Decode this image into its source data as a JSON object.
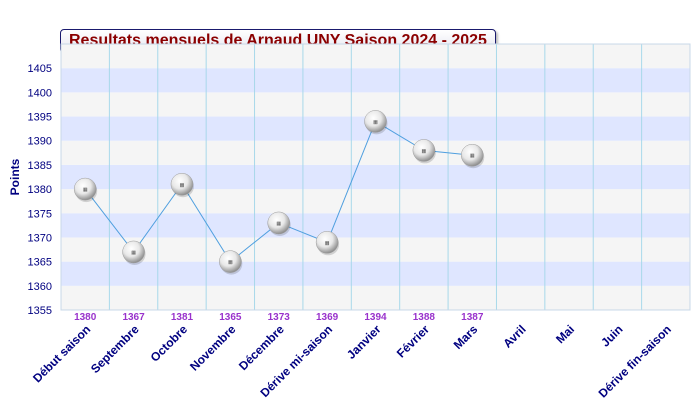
{
  "chart_data": {
    "type": "line",
    "title": "Resultats mensuels de Arnaud UNY Saison 2024 - 2025",
    "ylabel": "Points",
    "xlabel": "",
    "ylim": [
      1355,
      1410
    ],
    "yticks": [
      1355,
      1360,
      1365,
      1370,
      1375,
      1380,
      1385,
      1390,
      1395,
      1400,
      1405
    ],
    "categories": [
      "Début saison",
      "Septembre",
      "Octobre",
      "Novembre",
      "Décembre",
      "Dérive mi-saison",
      "Janvier",
      "Février",
      "Mars",
      "Avril",
      "Mai",
      "Juin",
      "Dérive fin-saison"
    ],
    "series": [
      {
        "values": [
          1380,
          1367,
          1381,
          1365,
          1373,
          1369,
          1394,
          1388,
          1387,
          null,
          null,
          null,
          null
        ]
      }
    ],
    "value_labels": [
      "1380",
      "1367",
      "1381",
      "1365",
      "1373",
      "1369",
      "1394",
      "1388",
      "1387",
      "",
      "",
      "",
      ""
    ],
    "grid": true,
    "colors": {
      "line": "#4f9fdf",
      "band_blue": "#dfe6ff",
      "band_grey": "#f5f5f5",
      "vertical_grid": "#a8d8ea",
      "axis_text": "#000080",
      "value_label": "#9932cc",
      "title": "#8b0000"
    }
  }
}
